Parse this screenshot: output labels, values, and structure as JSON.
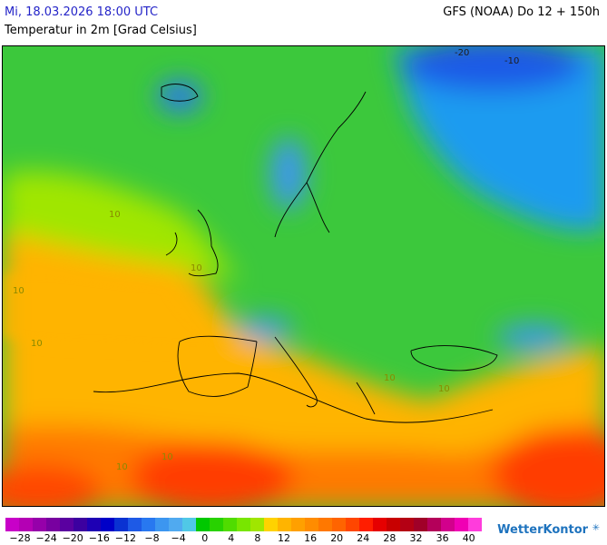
{
  "header": {
    "date": "Mi, 18.03.2026 18:00 UTC",
    "model": "GFS (NOAA) Do 12 + 150h",
    "parameter": "Temperatur in 2m [Grad Celsius]"
  },
  "map": {
    "contour_labels": [
      "-20",
      "-10",
      "10",
      "10",
      "10",
      "10",
      "10",
      "10",
      "10",
      "10"
    ]
  },
  "legend": {
    "colors": [
      "#c800c8",
      "#b400b4",
      "#9600aa",
      "#7800a0",
      "#5a00a0",
      "#3c00a0",
      "#1e00b4",
      "#0000c8",
      "#0a32d2",
      "#1e5ae6",
      "#2878f0",
      "#3c96f0",
      "#50aaf0",
      "#50c8e6",
      "#00c800",
      "#28d200",
      "#50dc00",
      "#78e600",
      "#a0e600",
      "#ffd200",
      "#ffb400",
      "#ffa000",
      "#ff8c00",
      "#ff7800",
      "#ff6400",
      "#ff4600",
      "#ff1e00",
      "#e60000",
      "#c80000",
      "#b40014",
      "#a00028",
      "#b4005a",
      "#d2008c",
      "#f000b4",
      "#ff3cdc"
    ],
    "ticks": [
      "−28",
      "−24",
      "−20",
      "−16",
      "−12",
      "−8",
      "−4",
      "0",
      "4",
      "8",
      "12",
      "16",
      "20",
      "24",
      "28",
      "32",
      "36",
      "40"
    ]
  },
  "brand": {
    "name": "WetterKontor",
    "icon": "snowflake-icon"
  }
}
